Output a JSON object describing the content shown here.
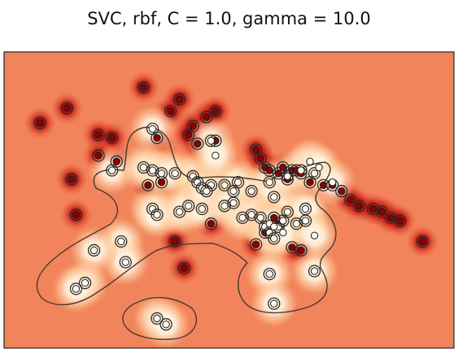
{
  "chart_data": {
    "type": "scatter",
    "title": "SVC, rbf, C = 1.0, gamma = 10.0",
    "xlabel": "",
    "ylabel": "",
    "xlim": [
      0,
      1
    ],
    "ylim": [
      0,
      1
    ],
    "axis_ticks": "none",
    "grid": false,
    "legend": "none",
    "colormap": "OrRd (decision function)",
    "colors": {
      "background": "#f2845c",
      "class_a_core": "#8c0000",
      "class_b_core": "#fffaf0",
      "contour": "#4a3a30"
    },
    "series": [
      {
        "class": "dark",
        "support_vectors": true,
        "x": [
          0.31,
          0.14,
          0.08,
          0.37,
          0.39,
          0.42,
          0.43,
          0.45,
          0.47,
          0.41,
          0.47,
          0.21,
          0.24,
          0.21,
          0.25,
          0.15,
          0.35,
          0.34,
          0.32,
          0.56,
          0.57,
          0.58,
          0.59,
          0.61,
          0.62,
          0.63,
          0.64,
          0.65,
          0.66,
          0.68,
          0.71,
          0.73,
          0.75,
          0.77,
          0.79,
          0.82,
          0.84,
          0.86,
          0.88,
          0.93,
          0.16,
          0.4,
          0.46,
          0.6,
          0.61,
          0.58,
          0.64,
          0.66,
          0.56,
          0.38
        ],
        "y": [
          0.88,
          0.81,
          0.76,
          0.8,
          0.84,
          0.75,
          0.69,
          0.78,
          0.8,
          0.72,
          0.7,
          0.72,
          0.71,
          0.65,
          0.63,
          0.57,
          0.56,
          0.71,
          0.55,
          0.67,
          0.64,
          0.61,
          0.6,
          0.59,
          0.61,
          0.57,
          0.6,
          0.6,
          0.59,
          0.56,
          0.55,
          0.55,
          0.53,
          0.5,
          0.48,
          0.47,
          0.46,
          0.44,
          0.43,
          0.36,
          0.45,
          0.27,
          0.42,
          0.44,
          0.42,
          0.39,
          0.34,
          0.33,
          0.35,
          0.36
        ]
      },
      {
        "class": "light",
        "support_vectors": true,
        "x": [
          0.33,
          0.46,
          0.24,
          0.31,
          0.33,
          0.35,
          0.38,
          0.42,
          0.43,
          0.44,
          0.46,
          0.49,
          0.51,
          0.52,
          0.55,
          0.59,
          0.6,
          0.63,
          0.66,
          0.69,
          0.26,
          0.33,
          0.34,
          0.39,
          0.41,
          0.44,
          0.45,
          0.49,
          0.51,
          0.53,
          0.55,
          0.57,
          0.58,
          0.59,
          0.6,
          0.61,
          0.62,
          0.63,
          0.65,
          0.67,
          0.27,
          0.2,
          0.18,
          0.16,
          0.59,
          0.6,
          0.69,
          0.34,
          0.36,
          0.67
        ],
        "y": [
          0.74,
          0.7,
          0.6,
          0.61,
          0.6,
          0.59,
          0.59,
          0.58,
          0.56,
          0.54,
          0.55,
          0.55,
          0.53,
          0.56,
          0.53,
          0.56,
          0.51,
          0.58,
          0.6,
          0.59,
          0.36,
          0.47,
          0.45,
          0.46,
          0.48,
          0.47,
          0.53,
          0.48,
          0.49,
          0.44,
          0.45,
          0.44,
          0.41,
          0.39,
          0.37,
          0.41,
          0.43,
          0.46,
          0.42,
          0.43,
          0.29,
          0.33,
          0.22,
          0.2,
          0.25,
          0.15,
          0.26,
          0.1,
          0.08,
          0.47
        ]
      },
      {
        "class": "light",
        "support_vectors": false,
        "x": [
          0.47,
          0.68,
          0.7,
          0.73,
          0.59,
          0.6,
          0.62,
          0.69
        ],
        "y": [
          0.65,
          0.63,
          0.61,
          0.56,
          0.42,
          0.41,
          0.39,
          0.38
        ]
      }
    ]
  }
}
